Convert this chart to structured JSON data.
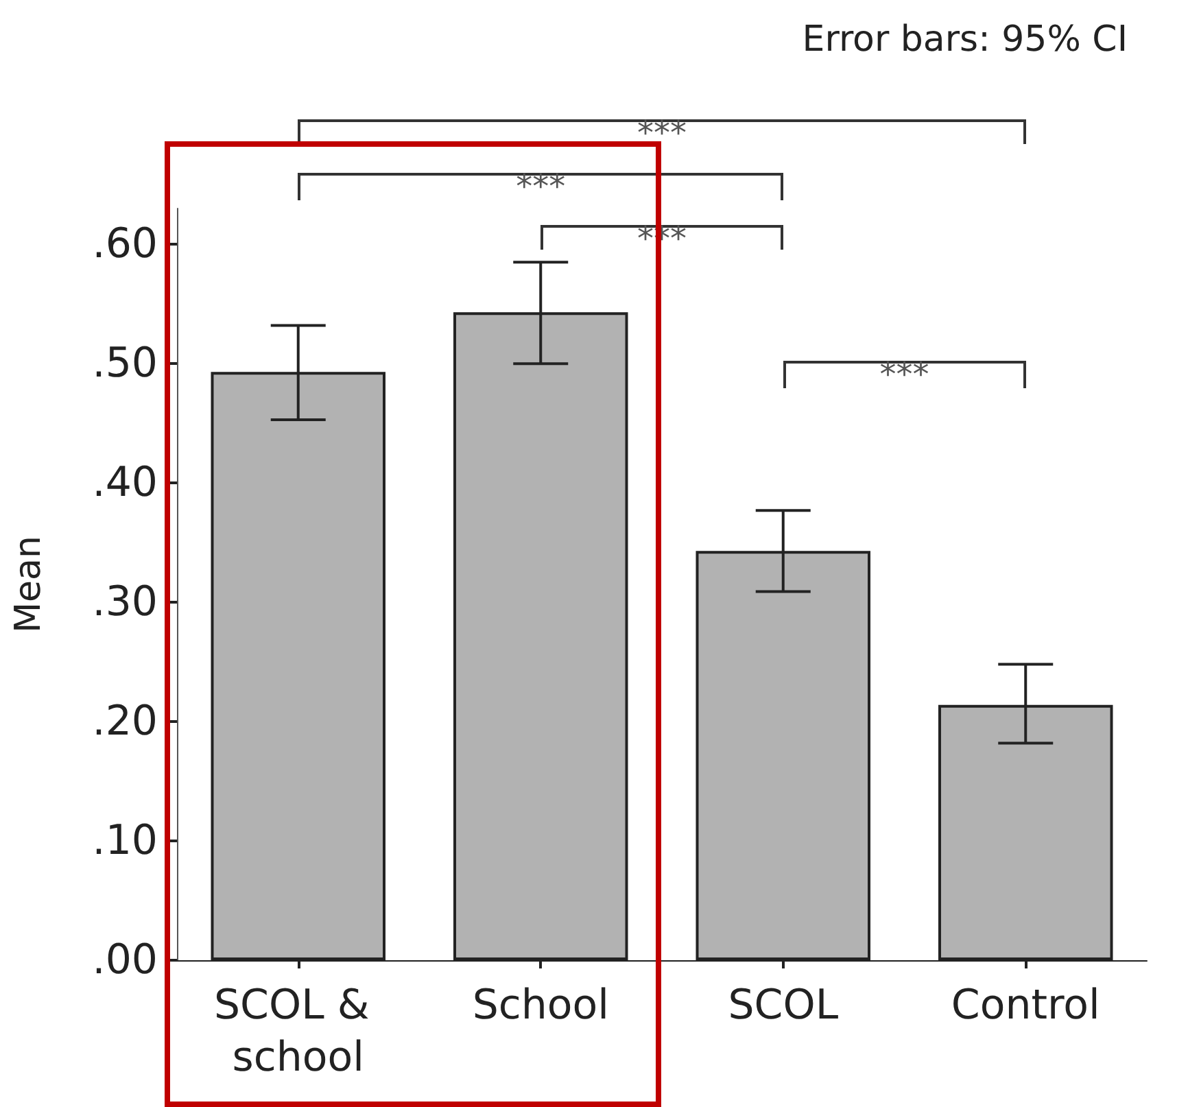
{
  "chart_data": {
    "type": "bar",
    "ylabel": "Mean",
    "categories": [
      "SCOL & school",
      "School",
      "SCOL",
      "Control"
    ],
    "values": [
      0.493,
      0.543,
      0.343,
      0.214
    ],
    "errors": [
      [
        0.453,
        0.532
      ],
      [
        0.5,
        0.585
      ],
      [
        0.309,
        0.377
      ],
      [
        0.182,
        0.248
      ]
    ],
    "color": "#b2b2b2",
    "ylim": [
      0,
      0.63
    ],
    "yticks": [
      {
        "value": 0,
        "label": ".00"
      },
      {
        "value": 0.1,
        "label": ".10"
      },
      {
        "value": 0.2,
        "label": ".20"
      },
      {
        "value": 0.3,
        "label": ".30"
      },
      {
        "value": 0.4,
        "label": ".40"
      },
      {
        "value": 0.5,
        "label": ".50"
      },
      {
        "value": 0.6,
        "label": ".60"
      }
    ],
    "annotations": [
      "Error bars: 95% CI",
      "***",
      "***",
      "***",
      "***"
    ]
  }
}
